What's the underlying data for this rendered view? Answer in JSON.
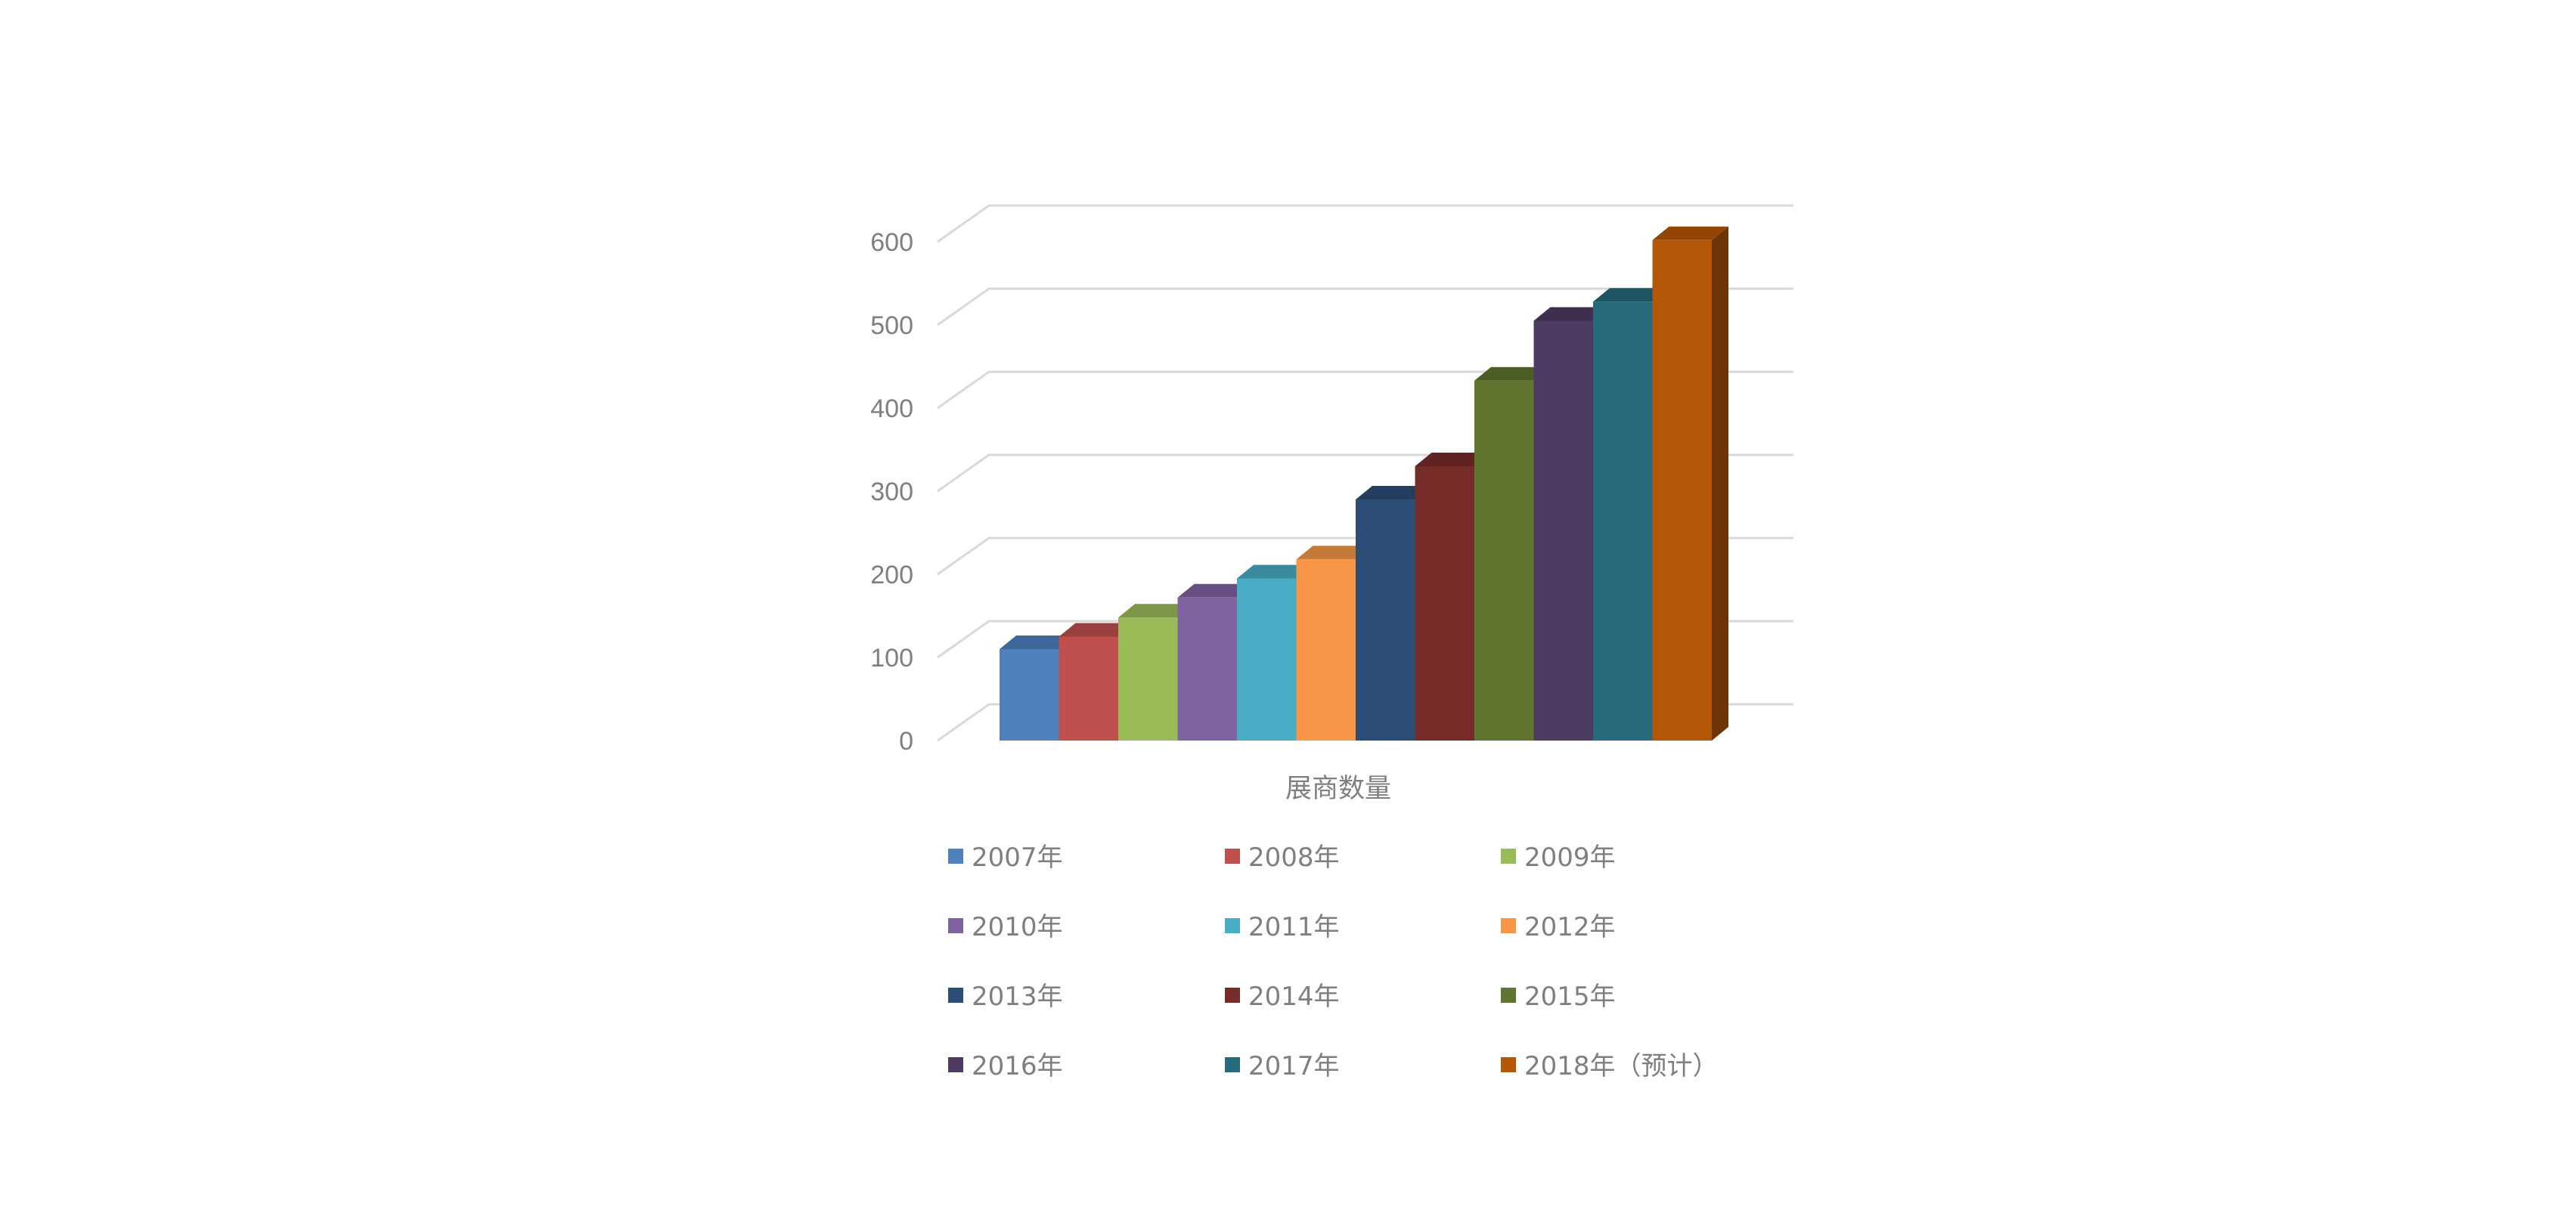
{
  "chart_data": {
    "type": "bar",
    "title": "",
    "xlabel": "",
    "ylabel": "",
    "categories": [
      "展商数量"
    ],
    "ylim": [
      0,
      600
    ],
    "yticks": [
      0,
      100,
      200,
      300,
      400,
      500,
      600
    ],
    "grid": true,
    "legend_position": "bottom",
    "series": [
      {
        "name": "2007年",
        "values": [
          110
        ],
        "color": "#4f81bd"
      },
      {
        "name": "2008年",
        "values": [
          125
        ],
        "color": "#c0504d"
      },
      {
        "name": "2009年",
        "values": [
          148
        ],
        "color": "#9bbb59"
      },
      {
        "name": "2010年",
        "values": [
          172
        ],
        "color": "#8064a2"
      },
      {
        "name": "2011年",
        "values": [
          195
        ],
        "color": "#4bacc6"
      },
      {
        "name": "2012年",
        "values": [
          218
        ],
        "color": "#f79646"
      },
      {
        "name": "2013年",
        "values": [
          290
        ],
        "color": "#2c4d75"
      },
      {
        "name": "2014年",
        "values": [
          330
        ],
        "color": "#772c2a"
      },
      {
        "name": "2015年",
        "values": [
          433
        ],
        "color": "#5f7530"
      },
      {
        "name": "2016年",
        "values": [
          505
        ],
        "color": "#4d3b62"
      },
      {
        "name": "2017年",
        "values": [
          528
        ],
        "color": "#276a7c"
      },
      {
        "name": "2018年（预计）",
        "values": [
          602
        ],
        "color": "#b65708"
      }
    ]
  }
}
